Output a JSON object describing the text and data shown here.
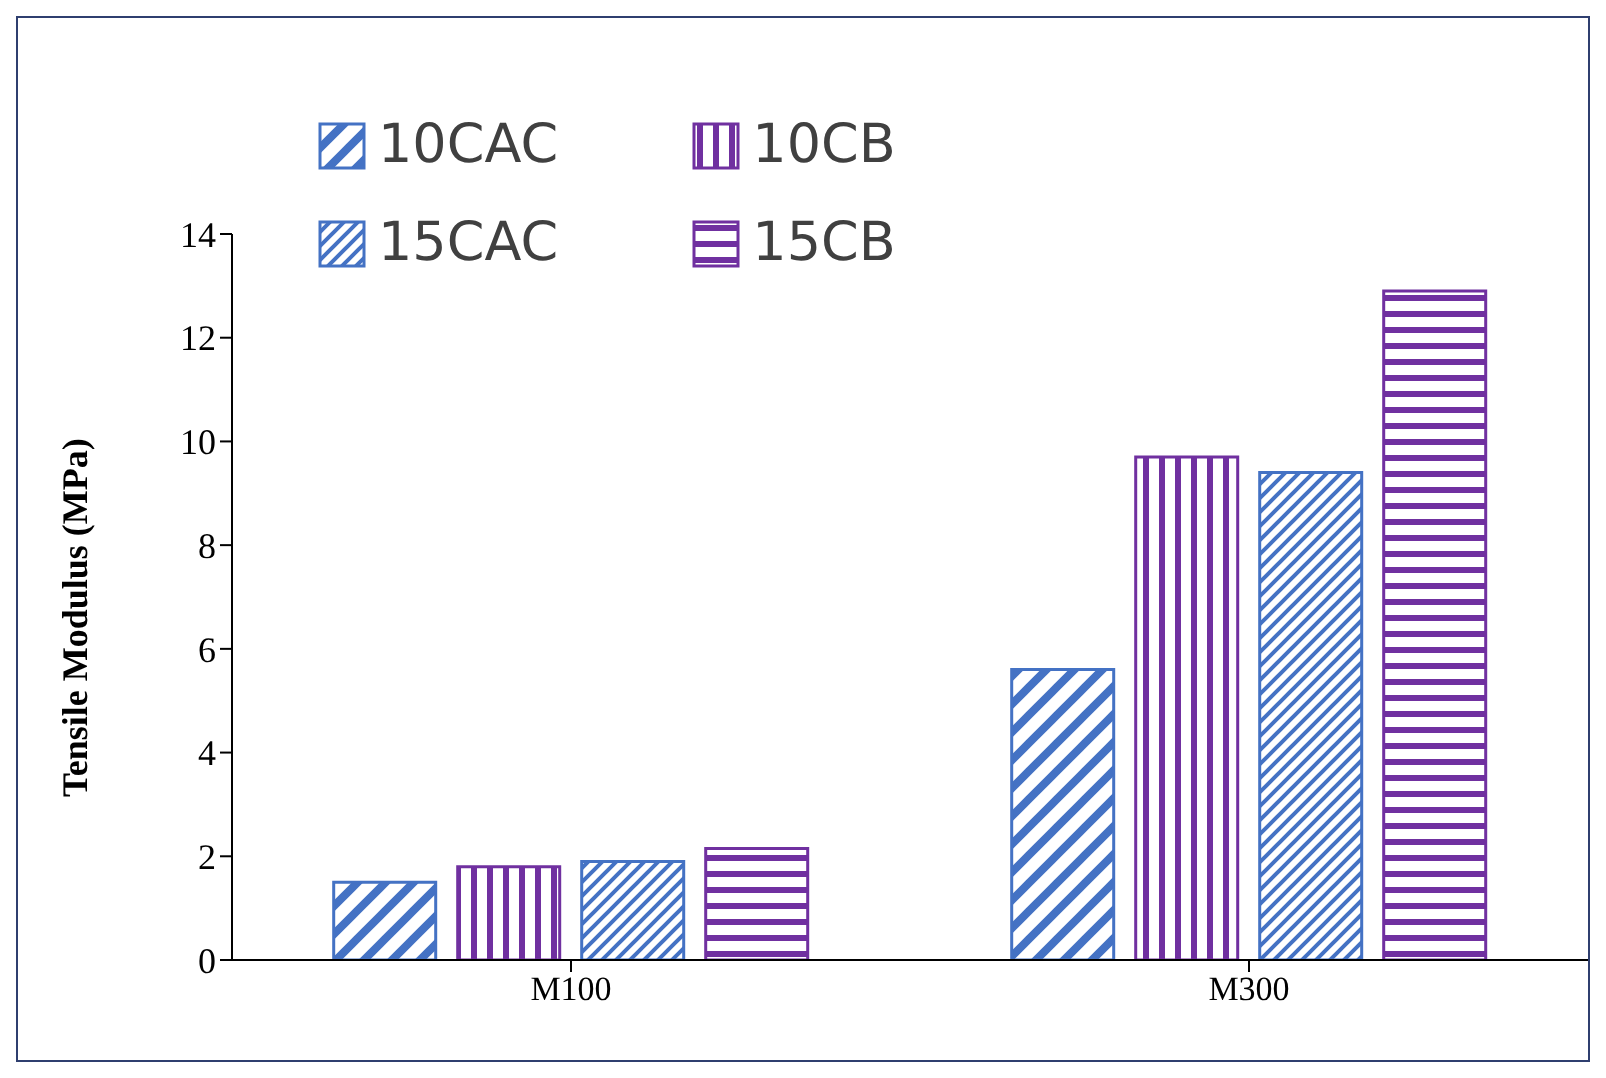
{
  "chart_data": {
    "type": "bar",
    "ylabel": "Tensile Modulus (MPa)",
    "categories": [
      "M100",
      "M300"
    ],
    "series": [
      {
        "name": "10CAC",
        "color": "#4472c4",
        "values": [
          1.5,
          5.6
        ]
      },
      {
        "name": "10CB",
        "color": "#7030a0",
        "values": [
          1.8,
          9.7
        ]
      },
      {
        "name": "15CAC",
        "color": "#4472c4",
        "values": [
          1.9,
          9.4
        ]
      },
      {
        "name": "15CB",
        "color": "#7030a0",
        "values": [
          2.15,
          12.9
        ]
      }
    ],
    "ylim": [
      0,
      14
    ],
    "yticks": [
      0,
      2,
      4,
      6,
      8,
      10,
      12,
      14
    ],
    "grid": false,
    "legend": "top left"
  }
}
